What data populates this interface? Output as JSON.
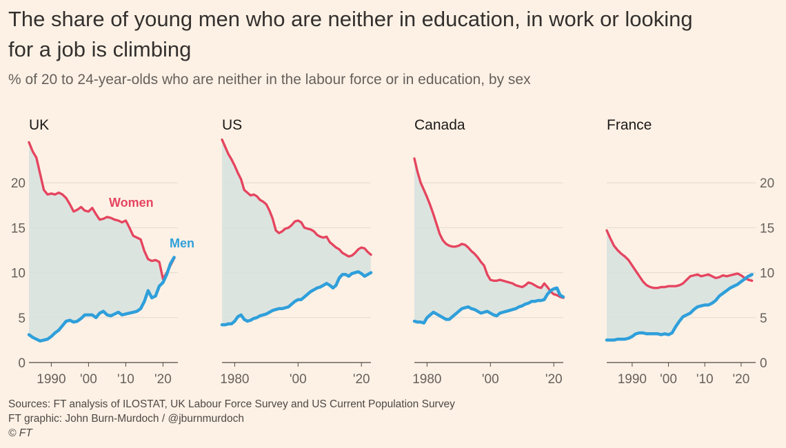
{
  "title": "The share of young men who are neither in education, in work or looking for a job is climbing",
  "subtitle": "% of 20 to 24-year-olds who are neither in the labour force or in education, by sex",
  "footer": {
    "sources": "Sources: FT analysis of ILOSTAT, UK Labour Force Survey and US Current Population Survey",
    "graphic": "FT graphic: John Burn-Murdoch / @jburnmurdoch",
    "copyright": "© FT"
  },
  "colors": {
    "background": "#fdf1e5",
    "women": "#e5455f",
    "men": "#2f9fda",
    "gap_fill": "#d6e2df",
    "grid": "#e3d9cf",
    "axis": "#66605c"
  },
  "chart_data": {
    "type": "line",
    "ylim": [
      0,
      25
    ],
    "yticks": [
      0,
      5,
      10,
      15,
      20
    ],
    "shared_y_axis": "outer-left-and-right",
    "annotations": [
      {
        "panel": "UK",
        "series": "Women",
        "text": "Women"
      },
      {
        "panel": "UK",
        "series": "Men",
        "text": "Men"
      }
    ],
    "panels": [
      {
        "name": "UK",
        "xlim": [
          1984,
          2024
        ],
        "xticks": [
          1990,
          2000,
          2010,
          2020
        ],
        "xtick_labels": [
          "1990",
          "'00",
          "'10",
          "'20"
        ],
        "series": [
          {
            "name": "Women",
            "color": "#e5455f",
            "x": [
              1984,
              1985,
              1986,
              1987,
              1988,
              1989,
              1990,
              1991,
              1992,
              1993,
              1994,
              1995,
              1996,
              1997,
              1998,
              1999,
              2000,
              2001,
              2002,
              2003,
              2004,
              2005,
              2006,
              2007,
              2008,
              2009,
              2010,
              2011,
              2012,
              2013,
              2014,
              2015,
              2016,
              2017,
              2018,
              2019,
              2020,
              2021,
              2022,
              2023
            ],
            "values": [
              24.5,
              23.5,
              22.8,
              21.0,
              19.2,
              18.7,
              18.8,
              18.7,
              18.9,
              18.7,
              18.3,
              17.6,
              16.8,
              17.0,
              17.3,
              16.9,
              16.8,
              17.2,
              16.5,
              15.9,
              16.0,
              16.2,
              16.1,
              15.9,
              15.8,
              15.6,
              15.8,
              15.0,
              14.1,
              13.9,
              13.7,
              12.4,
              11.5,
              11.3,
              11.4,
              11.2,
              9.3,
              10.0,
              10.8,
              11.6
            ]
          },
          {
            "name": "Men",
            "color": "#2f9fda",
            "x": [
              1984,
              1985,
              1986,
              1987,
              1988,
              1989,
              1990,
              1991,
              1992,
              1993,
              1994,
              1995,
              1996,
              1997,
              1998,
              1999,
              2000,
              2001,
              2002,
              2003,
              2004,
              2005,
              2006,
              2007,
              2008,
              2009,
              2010,
              2011,
              2012,
              2013,
              2014,
              2015,
              2016,
              2017,
              2018,
              2019,
              2020,
              2021,
              2022,
              2023
            ],
            "values": [
              3.1,
              2.8,
              2.6,
              2.4,
              2.5,
              2.6,
              2.9,
              3.3,
              3.6,
              4.1,
              4.6,
              4.7,
              4.5,
              4.6,
              4.9,
              5.3,
              5.3,
              5.3,
              5.0,
              5.5,
              5.7,
              5.3,
              5.2,
              5.4,
              5.6,
              5.3,
              5.4,
              5.5,
              5.6,
              5.7,
              6.0,
              6.8,
              8.0,
              7.2,
              7.4,
              8.5,
              8.9,
              9.8,
              11.0,
              11.7
            ]
          }
        ]
      },
      {
        "name": "US",
        "xlim": [
          1976,
          2023
        ],
        "xticks": [
          1980,
          2000,
          2020
        ],
        "xtick_labels": [
          "1980",
          "'00",
          "'20"
        ],
        "series": [
          {
            "name": "Women",
            "color": "#e5455f",
            "x": [
              1976,
              1977,
              1978,
              1979,
              1980,
              1981,
              1982,
              1983,
              1984,
              1985,
              1986,
              1987,
              1988,
              1989,
              1990,
              1991,
              1992,
              1993,
              1994,
              1995,
              1996,
              1997,
              1998,
              1999,
              2000,
              2001,
              2002,
              2003,
              2004,
              2005,
              2006,
              2007,
              2008,
              2009,
              2010,
              2011,
              2012,
              2013,
              2014,
              2015,
              2016,
              2017,
              2018,
              2019,
              2020,
              2021,
              2022,
              2023
            ],
            "values": [
              24.8,
              24.0,
              23.2,
              22.6,
              21.9,
              21.1,
              20.4,
              19.2,
              18.9,
              18.6,
              18.7,
              18.5,
              18.1,
              17.9,
              17.6,
              16.9,
              16.0,
              14.7,
              14.4,
              14.6,
              14.9,
              15.0,
              15.3,
              15.7,
              15.8,
              15.6,
              15.0,
              14.9,
              14.8,
              14.6,
              14.2,
              14.0,
              13.9,
              14.0,
              13.4,
              13.1,
              12.8,
              12.6,
              12.2,
              12.0,
              11.8,
              11.9,
              12.2,
              12.6,
              12.8,
              12.7,
              12.3,
              12.0
            ]
          },
          {
            "name": "Men",
            "color": "#2f9fda",
            "x": [
              1976,
              1977,
              1978,
              1979,
              1980,
              1981,
              1982,
              1983,
              1984,
              1985,
              1986,
              1987,
              1988,
              1989,
              1990,
              1991,
              1992,
              1993,
              1994,
              1995,
              1996,
              1997,
              1998,
              1999,
              2000,
              2001,
              2002,
              2003,
              2004,
              2005,
              2006,
              2007,
              2008,
              2009,
              2010,
              2011,
              2012,
              2013,
              2014,
              2015,
              2016,
              2017,
              2018,
              2019,
              2020,
              2021,
              2022,
              2023
            ],
            "values": [
              4.2,
              4.2,
              4.3,
              4.3,
              4.6,
              5.1,
              5.3,
              4.8,
              4.6,
              4.7,
              4.9,
              5.0,
              5.2,
              5.3,
              5.4,
              5.6,
              5.8,
              5.9,
              6.0,
              6.0,
              6.1,
              6.2,
              6.5,
              6.8,
              7.0,
              7.0,
              7.3,
              7.6,
              7.9,
              8.1,
              8.3,
              8.4,
              8.6,
              8.8,
              8.6,
              8.3,
              8.6,
              9.4,
              9.8,
              9.8,
              9.6,
              9.9,
              10.0,
              10.1,
              9.9,
              9.6,
              9.8,
              10.0
            ]
          }
        ]
      },
      {
        "name": "Canada",
        "xlim": [
          1976,
          2023
        ],
        "xticks": [
          1980,
          2000,
          2020
        ],
        "xtick_labels": [
          "1980",
          "'00",
          "'20"
        ],
        "series": [
          {
            "name": "Women",
            "color": "#e5455f",
            "x": [
              1976,
              1977,
              1978,
              1979,
              1980,
              1981,
              1982,
              1983,
              1984,
              1985,
              1986,
              1987,
              1988,
              1989,
              1990,
              1991,
              1992,
              1993,
              1994,
              1995,
              1996,
              1997,
              1998,
              1999,
              2000,
              2001,
              2002,
              2003,
              2004,
              2005,
              2006,
              2007,
              2008,
              2009,
              2010,
              2011,
              2012,
              2013,
              2014,
              2015,
              2016,
              2017,
              2018,
              2019,
              2020,
              2021,
              2022,
              2023
            ],
            "values": [
              22.7,
              21.2,
              20.0,
              19.2,
              18.4,
              17.5,
              16.5,
              15.4,
              14.3,
              13.6,
              13.2,
              13.0,
              12.9,
              12.9,
              13.0,
              13.2,
              13.1,
              12.8,
              12.4,
              12.1,
              11.7,
              11.2,
              10.8,
              9.8,
              9.2,
              9.1,
              9.1,
              9.2,
              9.1,
              9.0,
              8.9,
              8.8,
              8.6,
              8.5,
              8.4,
              8.6,
              8.9,
              8.8,
              8.6,
              8.4,
              8.3,
              8.8,
              8.4,
              7.9,
              7.6,
              7.5,
              7.3,
              7.2
            ]
          },
          {
            "name": "Men",
            "color": "#2f9fda",
            "x": [
              1976,
              1977,
              1978,
              1979,
              1980,
              1981,
              1982,
              1983,
              1984,
              1985,
              1986,
              1987,
              1988,
              1989,
              1990,
              1991,
              1992,
              1993,
              1994,
              1995,
              1996,
              1997,
              1998,
              1999,
              2000,
              2001,
              2002,
              2003,
              2004,
              2005,
              2006,
              2007,
              2008,
              2009,
              2010,
              2011,
              2012,
              2013,
              2014,
              2015,
              2016,
              2017,
              2018,
              2019,
              2020,
              2021,
              2022,
              2023
            ],
            "values": [
              4.6,
              4.5,
              4.5,
              4.4,
              5.0,
              5.3,
              5.6,
              5.4,
              5.2,
              5.0,
              4.8,
              4.8,
              5.1,
              5.4,
              5.7,
              6.0,
              6.1,
              6.2,
              6.0,
              5.9,
              5.7,
              5.5,
              5.6,
              5.7,
              5.5,
              5.3,
              5.2,
              5.5,
              5.6,
              5.7,
              5.8,
              5.9,
              6.0,
              6.2,
              6.3,
              6.5,
              6.6,
              6.8,
              6.8,
              6.9,
              6.9,
              7.0,
              7.6,
              8.0,
              8.2,
              8.3,
              7.5,
              7.3
            ]
          }
        ]
      },
      {
        "name": "France",
        "xlim": [
          1983,
          2024
        ],
        "xticks": [
          1990,
          2000,
          2010,
          2020
        ],
        "xtick_labels": [
          "1990",
          "'00",
          "'10",
          "'20"
        ],
        "series": [
          {
            "name": "Women",
            "color": "#e5455f",
            "x": [
              1983,
              1984,
              1985,
              1986,
              1987,
              1988,
              1989,
              1990,
              1991,
              1992,
              1993,
              1994,
              1995,
              1996,
              1997,
              1998,
              1999,
              2000,
              2001,
              2002,
              2003,
              2004,
              2005,
              2006,
              2007,
              2008,
              2009,
              2010,
              2011,
              2012,
              2013,
              2014,
              2015,
              2016,
              2017,
              2018,
              2019,
              2020,
              2021,
              2022,
              2023
            ],
            "values": [
              14.7,
              13.8,
              13.0,
              12.5,
              12.1,
              11.8,
              11.4,
              10.8,
              10.2,
              9.6,
              9.0,
              8.6,
              8.4,
              8.3,
              8.3,
              8.4,
              8.4,
              8.5,
              8.5,
              8.5,
              8.6,
              8.8,
              9.2,
              9.6,
              9.7,
              9.8,
              9.6,
              9.7,
              9.8,
              9.6,
              9.4,
              9.5,
              9.7,
              9.6,
              9.7,
              9.8,
              9.9,
              9.7,
              9.4,
              9.2,
              9.1
            ]
          },
          {
            "name": "Men",
            "color": "#2f9fda",
            "x": [
              1983,
              1984,
              1985,
              1986,
              1987,
              1988,
              1989,
              1990,
              1991,
              1992,
              1993,
              1994,
              1995,
              1996,
              1997,
              1998,
              1999,
              2000,
              2001,
              2002,
              2003,
              2004,
              2005,
              2006,
              2007,
              2008,
              2009,
              2010,
              2011,
              2012,
              2013,
              2014,
              2015,
              2016,
              2017,
              2018,
              2019,
              2020,
              2021,
              2022,
              2023
            ],
            "values": [
              2.5,
              2.5,
              2.5,
              2.6,
              2.6,
              2.6,
              2.7,
              2.9,
              3.2,
              3.3,
              3.3,
              3.2,
              3.2,
              3.2,
              3.2,
              3.1,
              3.2,
              3.1,
              3.3,
              4.0,
              4.6,
              5.1,
              5.3,
              5.5,
              5.9,
              6.2,
              6.3,
              6.4,
              6.4,
              6.6,
              6.9,
              7.4,
              7.7,
              8.0,
              8.3,
              8.5,
              8.7,
              9.0,
              9.3,
              9.6,
              9.8
            ]
          }
        ]
      }
    ]
  }
}
